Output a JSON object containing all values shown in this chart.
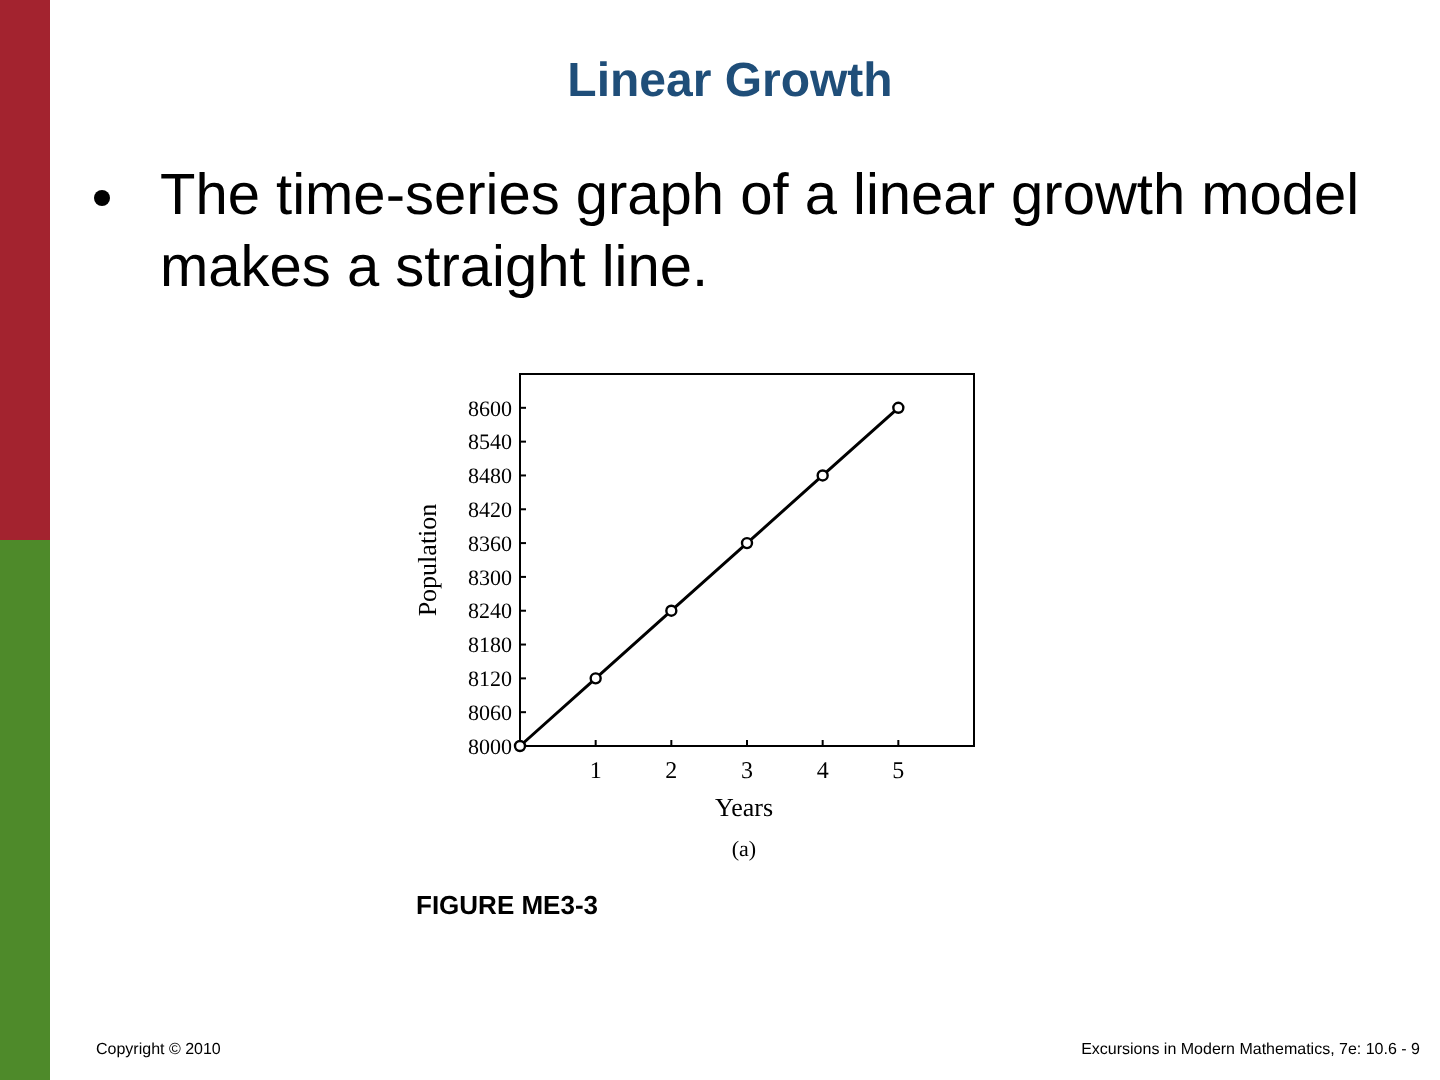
{
  "chart_data": {
    "type": "line",
    "title": "Linear Growth",
    "subtitle": "The time-series graph of a linear growth model makes a straight line.",
    "xlabel": "Years",
    "ylabel": "Population",
    "x": [
      0,
      1,
      2,
      3,
      4,
      5
    ],
    "series": [
      {
        "color": "#000000",
        "values": [
          8000,
          8120,
          8240,
          8360,
          8480,
          8600
        ]
      }
    ],
    "xlim": [
      0,
      6
    ],
    "xticks": [
      1,
      2,
      3,
      4,
      5
    ],
    "ylim": [
      8000,
      8660
    ],
    "yticks": [
      8000,
      8060,
      8120,
      8180,
      8240,
      8300,
      8360,
      8420,
      8480,
      8540,
      8600
    ],
    "grid": false,
    "marker": "circle",
    "line_style": "solid",
    "annotations": [
      "(a)",
      "FIGURE ME3-3",
      "Copyright © 2010",
      "Excursions in Modern Mathematics, 7e: 10.6 - 9"
    ]
  }
}
